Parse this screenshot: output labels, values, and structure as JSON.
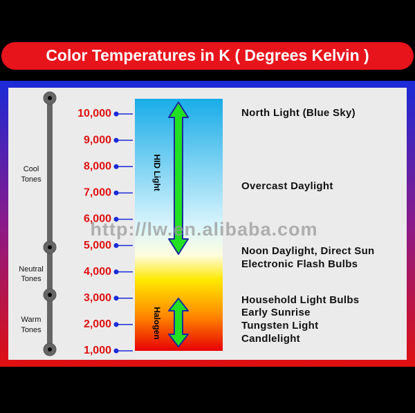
{
  "title": "Color Temperatures in K ( Degrees Kelvin )",
  "scale": [
    "10,000",
    "9,000",
    "8,000",
    "7,000",
    "6,000",
    "5,000",
    "4,000",
    "3,000",
    "2,000",
    "1,000"
  ],
  "tones": [
    [
      "Cool",
      "Tones"
    ],
    [
      "Neutral",
      "Tones"
    ],
    [
      "Warm",
      "Tones"
    ]
  ],
  "bands": [
    "HID Light",
    "Halogen"
  ],
  "descriptions": [
    "North Light (Blue Sky)",
    "Overcast Daylight",
    "Noon Daylight, Direct Sun",
    "Electronic Flash Bulbs",
    "Household Light Bulbs",
    "Early Sunrise",
    "Tungsten Light",
    "Candlelight"
  ],
  "watermark": "http://lw.en.alibaba.com"
}
